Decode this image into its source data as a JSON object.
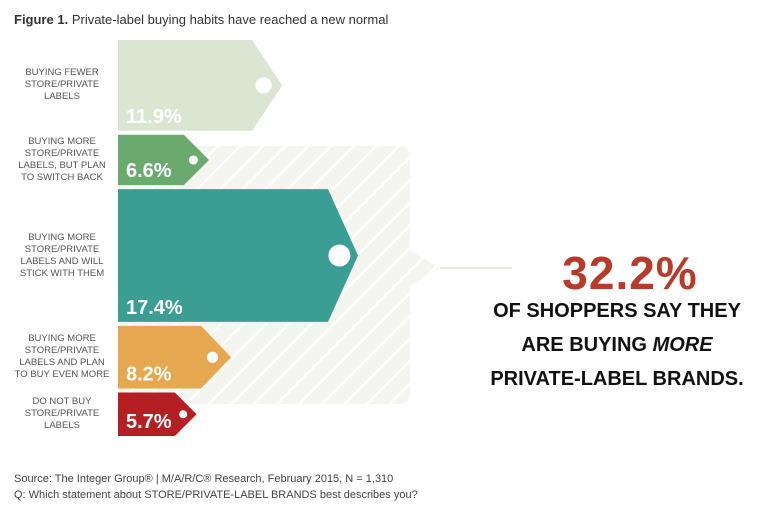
{
  "figure": {
    "title_prefix": "Figure 1.",
    "title_text": "Private-label buying habits have reached a new normal"
  },
  "chart_data": {
    "type": "bar",
    "categories": [
      "BUYING FEWER STORE/PRIVATE LABELS",
      "BUYING MORE STORE/PRIVATE LABELS, BUT PLAN TO SWITCH BACK",
      "BUYING MORE STORE/PRIVATE LABELS AND WILL STICK WITH THEM",
      "BUYING MORE STORE/PRIVATE LABELS AND PLAN TO BUY EVEN MORE",
      "DO NOT BUY STORE/PRIVATE LABELS"
    ],
    "values": [
      11.9,
      6.6,
      17.4,
      8.2,
      5.7
    ],
    "value_labels": [
      "11.9%",
      "6.6%",
      "17.4%",
      "8.2%",
      "5.7%"
    ],
    "label_lines": [
      [
        "BUYING FEWER",
        "STORE/PRIVATE",
        "LABELS"
      ],
      [
        "BUYING MORE",
        "STORE/PRIVATE",
        "LABELS, BUT PLAN",
        "TO SWITCH BACK"
      ],
      [
        "BUYING MORE",
        "STORE/PRIVATE",
        "LABELS AND WILL",
        "STICK WITH THEM"
      ],
      [
        "BUYING MORE",
        "STORE/PRIVATE",
        "LABELS AND PLAN",
        "TO BUY EVEN MORE"
      ],
      [
        "DO NOT BUY",
        "STORE/PRIVATE",
        "LABELS"
      ]
    ],
    "colors": [
      "#dbe6d2",
      "#6aaa6e",
      "#3b9e95",
      "#e5a74f",
      "#b51f23"
    ],
    "highlight_group": [
      1,
      2,
      3
    ],
    "orientation": "horizontal"
  },
  "callout": {
    "big_value": "32.2%",
    "line1": "OF SHOPPERS SAY THEY",
    "line2_prefix": "ARE BUYING",
    "line2_emph": "MORE",
    "line3": "PRIVATE-LABEL BRANDS.",
    "accent_color": "#b83a2a"
  },
  "source": {
    "line1": "Source: The Integer Group® | M/A/R/C® Research, February 2015, N = 1,310",
    "line2": "Q: Which statement about STORE/PRIVATE-LABEL BRANDS best describes you?"
  }
}
